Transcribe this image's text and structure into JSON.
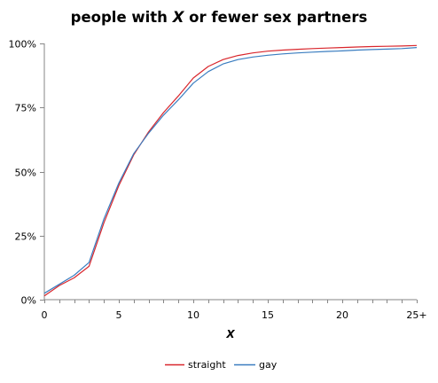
{
  "title": {
    "prefix": "people with ",
    "variable": "X",
    "suffix": " or fewer sex partners"
  },
  "chart_data": {
    "type": "line",
    "title": "people with X or fewer sex partners",
    "xlabel": "X",
    "ylabel": "",
    "x": [
      0,
      1,
      2,
      3,
      4,
      5,
      6,
      7,
      8,
      9,
      10,
      11,
      12,
      13,
      14,
      15,
      16,
      17,
      18,
      19,
      20,
      21,
      22,
      23,
      24,
      25
    ],
    "x_ticks": [
      0,
      5,
      10,
      15,
      20,
      25
    ],
    "x_tick_labels": [
      "0",
      "5",
      "10",
      "15",
      "20",
      "25+"
    ],
    "xlim": [
      0,
      25
    ],
    "y_ticks": [
      0,
      25,
      50,
      75,
      100
    ],
    "y_tick_labels": [
      "0%",
      "25%",
      "50%",
      "75%",
      "100%"
    ],
    "ylim": [
      0,
      100
    ],
    "grid": false,
    "legend_position": "bottom",
    "series": [
      {
        "name": "straight",
        "color": "#d9262c",
        "values": [
          1.5,
          5.5,
          8.5,
          13.0,
          30.0,
          44.5,
          56.5,
          65.5,
          73.0,
          79.5,
          86.5,
          91.0,
          93.7,
          95.3,
          96.3,
          97.0,
          97.4,
          97.7,
          98.0,
          98.2,
          98.4,
          98.6,
          98.8,
          98.9,
          99.0,
          99.2
        ]
      },
      {
        "name": "gay",
        "color": "#3a7dc0",
        "values": [
          2.5,
          6.0,
          9.5,
          14.5,
          31.5,
          45.5,
          57.0,
          65.0,
          72.0,
          78.0,
          84.5,
          89.0,
          92.0,
          93.7,
          94.7,
          95.4,
          95.9,
          96.3,
          96.6,
          96.9,
          97.1,
          97.4,
          97.6,
          97.8,
          98.0,
          98.4
        ]
      }
    ]
  }
}
